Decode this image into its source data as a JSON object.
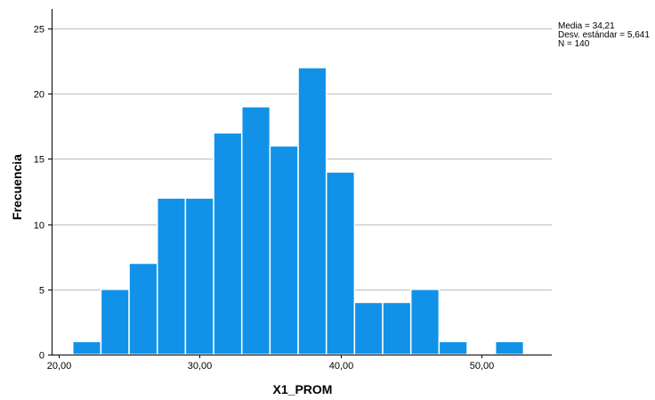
{
  "chart_data": {
    "type": "bar",
    "subtype": "histogram",
    "xlabel": "X1_PROM",
    "ylabel": "Frecuencia",
    "bin_width": 2,
    "bins": [
      {
        "start": 21,
        "end": 23,
        "count": 1
      },
      {
        "start": 23,
        "end": 25,
        "count": 5
      },
      {
        "start": 25,
        "end": 27,
        "count": 7
      },
      {
        "start": 27,
        "end": 29,
        "count": 12
      },
      {
        "start": 29,
        "end": 31,
        "count": 12
      },
      {
        "start": 31,
        "end": 33,
        "count": 17
      },
      {
        "start": 33,
        "end": 35,
        "count": 19
      },
      {
        "start": 35,
        "end": 37,
        "count": 16
      },
      {
        "start": 37,
        "end": 39,
        "count": 22
      },
      {
        "start": 39,
        "end": 41,
        "count": 14
      },
      {
        "start": 41,
        "end": 43,
        "count": 4
      },
      {
        "start": 43,
        "end": 45,
        "count": 4
      },
      {
        "start": 45,
        "end": 47,
        "count": 5
      },
      {
        "start": 47,
        "end": 49,
        "count": 1
      },
      {
        "start": 49,
        "end": 51,
        "count": 0
      },
      {
        "start": 51,
        "end": 53,
        "count": 1
      }
    ],
    "xlim": [
      19.5,
      55
    ],
    "ylim": [
      0,
      26.5
    ],
    "x_ticks": [
      20,
      30,
      40,
      50
    ],
    "x_tick_labels": [
      "20,00",
      "30,00",
      "40,00",
      "50,00"
    ],
    "y_ticks": [
      0,
      5,
      10,
      15,
      20,
      25
    ],
    "y_tick_labels": [
      "0",
      "5",
      "10",
      "15",
      "20",
      "25"
    ],
    "grid": "horizontal",
    "bar_color": "#1192E8",
    "bar_edge_color": "#FFFFFF",
    "stats": {
      "mean_label": "Media = 34,21",
      "sd_label": "Desv. estándar = 5,641",
      "n_label": "N = 140"
    }
  }
}
